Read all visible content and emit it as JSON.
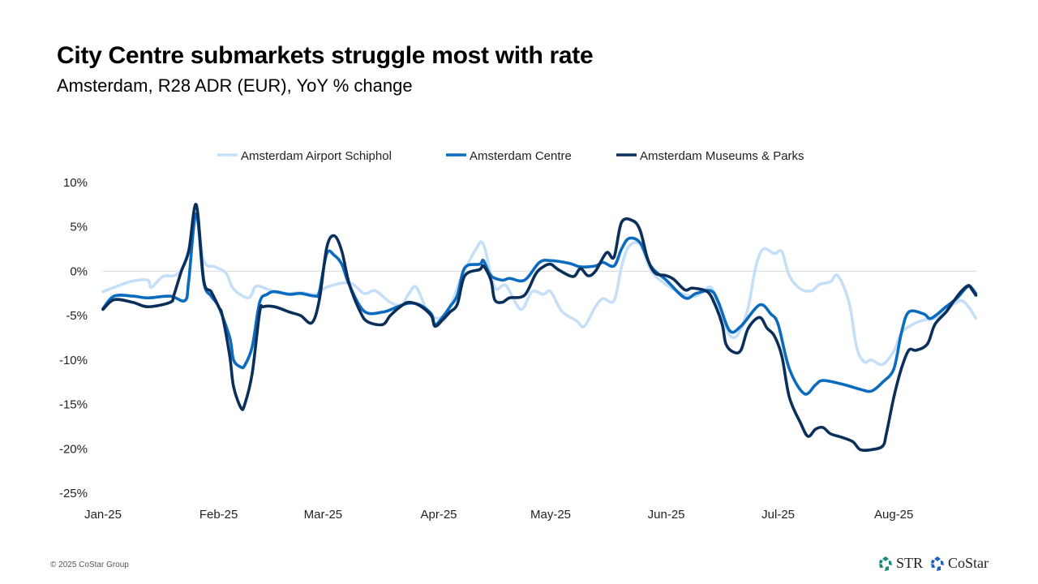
{
  "header": {
    "title": "City Centre submarkets struggle most with rate",
    "subtitle": "Amsterdam, R28 ADR (EUR), YoY % change"
  },
  "footer": {
    "copyright": "© 2025 CoStar Group",
    "logos": [
      {
        "name": "STR",
        "color": "#1a8a7a"
      },
      {
        "name": "CoStar",
        "color": "#1f5fbf"
      }
    ]
  },
  "chart_data": {
    "type": "line",
    "title": "",
    "xlabel": "",
    "ylabel": "",
    "ylim": [
      -25,
      10
    ],
    "yticks": [
      10,
      5,
      0,
      -5,
      -10,
      -15,
      -20,
      -25
    ],
    "ytick_labels": [
      "10%",
      "5%",
      "0%",
      "-5%",
      "-10%",
      "-15%",
      "-20%",
      "-25%"
    ],
    "xticks": [
      "2025-01-01",
      "2025-02-01",
      "2025-03-01",
      "2025-04-01",
      "2025-05-01",
      "2025-06-01",
      "2025-07-01",
      "2025-08-01"
    ],
    "xtick_labels": [
      "Jan-25",
      "Feb-25",
      "Mar-25",
      "Apr-25",
      "May-25",
      "Jun-25",
      "Jul-25",
      "Aug-25"
    ],
    "grid": "zero line only",
    "legend_position": "top",
    "series": [
      {
        "name": "Amsterdam Airport Schiphol",
        "color": "#c5dff8",
        "points": [
          [
            "2025-01-01",
            -2.3
          ],
          [
            "2025-01-06",
            -1.5
          ],
          [
            "2025-01-09",
            -1.1
          ],
          [
            "2025-01-13",
            -1.0
          ],
          [
            "2025-01-14",
            -1.8
          ],
          [
            "2025-01-17",
            -0.6
          ],
          [
            "2025-01-20",
            -0.5
          ],
          [
            "2025-01-22",
            0.2
          ],
          [
            "2025-01-24",
            2.5
          ],
          [
            "2025-01-26",
            6.3
          ],
          [
            "2025-01-28",
            1.2
          ],
          [
            "2025-01-31",
            0.5
          ],
          [
            "2025-02-03",
            -0.2
          ],
          [
            "2025-02-05",
            -2.0
          ],
          [
            "2025-02-09",
            -3.0
          ],
          [
            "2025-02-11",
            -1.7
          ],
          [
            "2025-02-14",
            -2.0
          ],
          [
            "2025-02-17",
            -2.4
          ],
          [
            "2025-02-20",
            -2.5
          ],
          [
            "2025-02-23",
            -2.4
          ],
          [
            "2025-02-27",
            -2.6
          ],
          [
            "2025-03-02",
            -1.8
          ],
          [
            "2025-03-08",
            -1.3
          ],
          [
            "2025-03-12",
            -2.5
          ],
          [
            "2025-03-15",
            -2.2
          ],
          [
            "2025-03-19",
            -3.5
          ],
          [
            "2025-03-22",
            -3.8
          ],
          [
            "2025-03-24",
            -2.5
          ],
          [
            "2025-03-26",
            -1.8
          ],
          [
            "2025-03-29",
            -4.5
          ],
          [
            "2025-04-01",
            -5.3
          ],
          [
            "2025-04-04",
            -4.0
          ],
          [
            "2025-04-07",
            -0.8
          ],
          [
            "2025-04-11",
            2.5
          ],
          [
            "2025-04-13",
            3.0
          ],
          [
            "2025-04-16",
            -1.8
          ],
          [
            "2025-04-19",
            -1.6
          ],
          [
            "2025-04-23",
            -4.3
          ],
          [
            "2025-04-26",
            -2.3
          ],
          [
            "2025-04-29",
            -2.6
          ],
          [
            "2025-05-01",
            -2.3
          ],
          [
            "2025-05-04",
            -4.5
          ],
          [
            "2025-05-08",
            -5.6
          ],
          [
            "2025-05-10",
            -6.2
          ],
          [
            "2025-05-13",
            -4.0
          ],
          [
            "2025-05-15",
            -3.1
          ],
          [
            "2025-05-18",
            -3.3
          ],
          [
            "2025-05-20",
            0.5
          ],
          [
            "2025-05-22",
            2.8
          ],
          [
            "2025-05-25",
            3.0
          ],
          [
            "2025-05-28",
            0.0
          ],
          [
            "2025-06-01",
            -1.5
          ],
          [
            "2025-06-05",
            -2.5
          ],
          [
            "2025-06-09",
            -2.8
          ],
          [
            "2025-06-13",
            -1.8
          ],
          [
            "2025-06-15",
            -4.5
          ],
          [
            "2025-06-17",
            -6.5
          ],
          [
            "2025-06-19",
            -7.5
          ],
          [
            "2025-06-21",
            -6.5
          ],
          [
            "2025-06-23",
            -4.0
          ],
          [
            "2025-06-25",
            0.5
          ],
          [
            "2025-06-27",
            2.5
          ],
          [
            "2025-06-30",
            2.0
          ],
          [
            "2025-07-02",
            2.2
          ],
          [
            "2025-07-04",
            -0.5
          ],
          [
            "2025-07-07",
            -2.0
          ],
          [
            "2025-07-10",
            -2.2
          ],
          [
            "2025-07-12",
            -1.5
          ],
          [
            "2025-07-15",
            -1.2
          ],
          [
            "2025-07-17",
            -0.5
          ],
          [
            "2025-07-20",
            -3.5
          ],
          [
            "2025-07-22",
            -8.5
          ],
          [
            "2025-07-24",
            -10.2
          ],
          [
            "2025-07-26",
            -10.0
          ],
          [
            "2025-07-29",
            -10.5
          ],
          [
            "2025-08-01",
            -9.0
          ],
          [
            "2025-08-03",
            -7.0
          ],
          [
            "2025-08-06",
            -6.0
          ],
          [
            "2025-08-09",
            -5.5
          ],
          [
            "2025-08-12",
            -5.3
          ],
          [
            "2025-08-16",
            -4.0
          ],
          [
            "2025-08-19",
            -3.3
          ],
          [
            "2025-08-21",
            -4.0
          ],
          [
            "2025-08-23",
            -5.3
          ]
        ]
      },
      {
        "name": "Amsterdam Centre",
        "color": "#0b6bbf",
        "points": [
          [
            "2025-01-01",
            -4.2
          ],
          [
            "2025-01-04",
            -2.8
          ],
          [
            "2025-01-09",
            -2.8
          ],
          [
            "2025-01-13",
            -3.0
          ],
          [
            "2025-01-19",
            -2.8
          ],
          [
            "2025-01-23",
            -3.3
          ],
          [
            "2025-01-24",
            -1.0
          ],
          [
            "2025-01-26",
            6.5
          ],
          [
            "2025-01-28",
            -1.2
          ],
          [
            "2025-01-30",
            -2.8
          ],
          [
            "2025-02-01",
            -4.0
          ],
          [
            "2025-02-04",
            -7.5
          ],
          [
            "2025-02-05",
            -10.0
          ],
          [
            "2025-02-07",
            -10.8
          ],
          [
            "2025-02-08",
            -10.6
          ],
          [
            "2025-02-10",
            -8.5
          ],
          [
            "2025-02-12",
            -3.5
          ],
          [
            "2025-02-14",
            -2.6
          ],
          [
            "2025-02-16",
            -2.3
          ],
          [
            "2025-02-20",
            -2.6
          ],
          [
            "2025-02-23",
            -2.5
          ],
          [
            "2025-02-27",
            -2.8
          ],
          [
            "2025-02-28",
            -2.3
          ],
          [
            "2025-03-02",
            2.0
          ],
          [
            "2025-03-04",
            1.8
          ],
          [
            "2025-03-06",
            0.8
          ],
          [
            "2025-03-08",
            -1.5
          ],
          [
            "2025-03-12",
            -4.5
          ],
          [
            "2025-03-17",
            -4.6
          ],
          [
            "2025-03-21",
            -4.0
          ],
          [
            "2025-03-24",
            -3.6
          ],
          [
            "2025-03-27",
            -3.8
          ],
          [
            "2025-03-30",
            -4.8
          ],
          [
            "2025-03-31",
            -6.0
          ],
          [
            "2025-04-02",
            -5.2
          ],
          [
            "2025-04-04",
            -4.0
          ],
          [
            "2025-04-06",
            -2.7
          ],
          [
            "2025-04-08",
            0.4
          ],
          [
            "2025-04-12",
            0.8
          ],
          [
            "2025-04-13",
            1.2
          ],
          [
            "2025-04-15",
            -0.5
          ],
          [
            "2025-04-18",
            -1.0
          ],
          [
            "2025-04-20",
            -0.8
          ],
          [
            "2025-04-24",
            -1.0
          ],
          [
            "2025-04-28",
            1.0
          ],
          [
            "2025-05-01",
            1.2
          ],
          [
            "2025-05-06",
            0.9
          ],
          [
            "2025-05-09",
            0.5
          ],
          [
            "2025-05-13",
            0.6
          ],
          [
            "2025-05-15",
            1.0
          ],
          [
            "2025-05-18",
            0.6
          ],
          [
            "2025-05-20",
            2.5
          ],
          [
            "2025-05-22",
            3.7
          ],
          [
            "2025-05-25",
            3.2
          ],
          [
            "2025-05-28",
            0.5
          ],
          [
            "2025-06-01",
            -1.0
          ],
          [
            "2025-06-06",
            -3.0
          ],
          [
            "2025-06-09",
            -2.5
          ],
          [
            "2025-06-13",
            -2.2
          ],
          [
            "2025-06-15",
            -3.5
          ],
          [
            "2025-06-18",
            -6.7
          ],
          [
            "2025-06-21",
            -6.2
          ],
          [
            "2025-06-26",
            -3.8
          ],
          [
            "2025-06-29",
            -4.8
          ],
          [
            "2025-07-01",
            -6.0
          ],
          [
            "2025-07-04",
            -11.0
          ],
          [
            "2025-07-08",
            -13.8
          ],
          [
            "2025-07-11",
            -12.8
          ],
          [
            "2025-07-13",
            -12.3
          ],
          [
            "2025-07-18",
            -12.7
          ],
          [
            "2025-07-23",
            -13.3
          ],
          [
            "2025-07-26",
            -13.5
          ],
          [
            "2025-07-29",
            -12.5
          ],
          [
            "2025-08-01",
            -11.0
          ],
          [
            "2025-08-03",
            -7.0
          ],
          [
            "2025-08-05",
            -4.6
          ],
          [
            "2025-08-09",
            -4.8
          ],
          [
            "2025-08-11",
            -5.3
          ],
          [
            "2025-08-15",
            -4.0
          ],
          [
            "2025-08-18",
            -3.0
          ],
          [
            "2025-08-21",
            -1.7
          ],
          [
            "2025-08-23",
            -2.5
          ]
        ]
      },
      {
        "name": "Amsterdam Museums & Parks",
        "color": "#0a2f5a",
        "points": [
          [
            "2025-01-01",
            -4.3
          ],
          [
            "2025-01-04",
            -3.2
          ],
          [
            "2025-01-09",
            -3.5
          ],
          [
            "2025-01-13",
            -4.0
          ],
          [
            "2025-01-19",
            -3.5
          ],
          [
            "2025-01-20",
            -2.7
          ],
          [
            "2025-01-22",
            0.0
          ],
          [
            "2025-01-24",
            2.3
          ],
          [
            "2025-01-26",
            7.5
          ],
          [
            "2025-01-28",
            -1.0
          ],
          [
            "2025-01-30",
            -2.3
          ],
          [
            "2025-02-01",
            -4.0
          ],
          [
            "2025-02-02",
            -5.0
          ],
          [
            "2025-02-04",
            -9.6
          ],
          [
            "2025-02-05",
            -13.0
          ],
          [
            "2025-02-07",
            -15.4
          ],
          [
            "2025-02-08",
            -15.0
          ],
          [
            "2025-02-10",
            -11.5
          ],
          [
            "2025-02-12",
            -4.6
          ],
          [
            "2025-02-13",
            -4.0
          ],
          [
            "2025-02-16",
            -4.0
          ],
          [
            "2025-02-20",
            -4.6
          ],
          [
            "2025-02-23",
            -5.0
          ],
          [
            "2025-02-26",
            -5.8
          ],
          [
            "2025-02-28",
            -3.2
          ],
          [
            "2025-03-02",
            2.7
          ],
          [
            "2025-03-04",
            4.0
          ],
          [
            "2025-03-06",
            2.3
          ],
          [
            "2025-03-08",
            -1.4
          ],
          [
            "2025-03-11",
            -4.6
          ],
          [
            "2025-03-13",
            -5.7
          ],
          [
            "2025-03-17",
            -6.0
          ],
          [
            "2025-03-19",
            -5.0
          ],
          [
            "2025-03-22",
            -3.9
          ],
          [
            "2025-03-24",
            -3.5
          ],
          [
            "2025-03-27",
            -3.9
          ],
          [
            "2025-03-30",
            -5.0
          ],
          [
            "2025-03-31",
            -6.2
          ],
          [
            "2025-04-02",
            -5.5
          ],
          [
            "2025-04-04",
            -4.6
          ],
          [
            "2025-04-06",
            -3.7
          ],
          [
            "2025-04-08",
            -0.5
          ],
          [
            "2025-04-12",
            0.2
          ],
          [
            "2025-04-13",
            0.6
          ],
          [
            "2025-04-15",
            -1.0
          ],
          [
            "2025-04-16",
            -3.2
          ],
          [
            "2025-04-18",
            -3.5
          ],
          [
            "2025-04-20",
            -3.0
          ],
          [
            "2025-04-24",
            -2.7
          ],
          [
            "2025-04-27",
            -0.3
          ],
          [
            "2025-04-29",
            0.5
          ],
          [
            "2025-05-01",
            0.8
          ],
          [
            "2025-05-03",
            0.2
          ],
          [
            "2025-05-07",
            -0.6
          ],
          [
            "2025-05-09",
            0.3
          ],
          [
            "2025-05-11",
            -0.5
          ],
          [
            "2025-05-13",
            0.0
          ],
          [
            "2025-05-16",
            2.1
          ],
          [
            "2025-05-18",
            1.6
          ],
          [
            "2025-05-20",
            5.5
          ],
          [
            "2025-05-23",
            5.7
          ],
          [
            "2025-05-25",
            4.6
          ],
          [
            "2025-05-27",
            1.4
          ],
          [
            "2025-05-29",
            -0.2
          ],
          [
            "2025-06-01",
            -0.5
          ],
          [
            "2025-06-03",
            -0.9
          ],
          [
            "2025-06-06",
            -2.1
          ],
          [
            "2025-06-08",
            -1.9
          ],
          [
            "2025-06-12",
            -2.3
          ],
          [
            "2025-06-14",
            -3.7
          ],
          [
            "2025-06-16",
            -6.0
          ],
          [
            "2025-06-17",
            -8.2
          ],
          [
            "2025-06-19",
            -9.1
          ],
          [
            "2025-06-21",
            -8.9
          ],
          [
            "2025-06-23",
            -6.4
          ],
          [
            "2025-06-26",
            -5.2
          ],
          [
            "2025-06-28",
            -6.4
          ],
          [
            "2025-06-30",
            -7.3
          ],
          [
            "2025-07-02",
            -9.6
          ],
          [
            "2025-07-04",
            -14.2
          ],
          [
            "2025-07-07",
            -17.1
          ],
          [
            "2025-07-09",
            -18.6
          ],
          [
            "2025-07-11",
            -17.8
          ],
          [
            "2025-07-13",
            -17.6
          ],
          [
            "2025-07-15",
            -18.3
          ],
          [
            "2025-07-18",
            -18.7
          ],
          [
            "2025-07-21",
            -19.2
          ],
          [
            "2025-07-23",
            -20.1
          ],
          [
            "2025-07-26",
            -20.1
          ],
          [
            "2025-07-29",
            -19.7
          ],
          [
            "2025-07-30",
            -18.3
          ],
          [
            "2025-08-01",
            -14.2
          ],
          [
            "2025-08-03",
            -11.0
          ],
          [
            "2025-08-05",
            -8.9
          ],
          [
            "2025-08-07",
            -8.9
          ],
          [
            "2025-08-10",
            -8.2
          ],
          [
            "2025-08-12",
            -6.0
          ],
          [
            "2025-08-15",
            -4.6
          ],
          [
            "2025-08-17",
            -3.4
          ],
          [
            "2025-08-19",
            -2.3
          ],
          [
            "2025-08-21",
            -1.6
          ],
          [
            "2025-08-22",
            -2.1
          ],
          [
            "2025-08-23",
            -2.7
          ]
        ]
      }
    ]
  }
}
